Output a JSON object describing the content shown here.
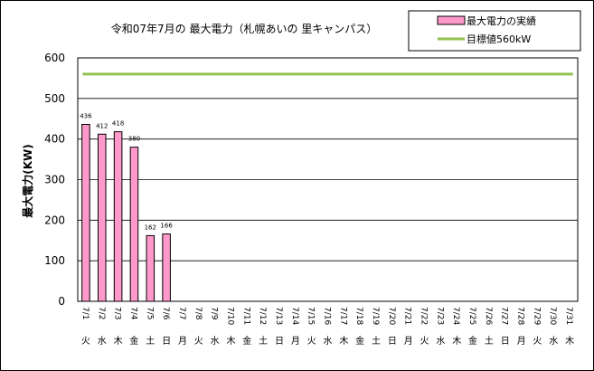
{
  "chart_data": {
    "type": "bar",
    "title": "令和07年7月の 最大電力（札幌あいの 里キャンパス）",
    "ylabel": "最大電力(KW)",
    "xlabel": "",
    "ylim": [
      0,
      600
    ],
    "yticks": [
      0,
      100,
      200,
      300,
      400,
      500,
      600
    ],
    "grid": true,
    "legend_position": "top-right",
    "categories": [
      "7/1",
      "7/2",
      "7/3",
      "7/4",
      "7/5",
      "7/6",
      "7/7",
      "7/8",
      "7/9",
      "7/10",
      "7/11",
      "7/12",
      "7/13",
      "7/14",
      "7/15",
      "7/16",
      "7/17",
      "7/18",
      "7/19",
      "7/20",
      "7/21",
      "7/22",
      "7/23",
      "7/24",
      "7/25",
      "7/26",
      "7/27",
      "7/28",
      "7/29",
      "7/30",
      "7/31"
    ],
    "weekdays": [
      "火",
      "水",
      "木",
      "金",
      "土",
      "日",
      "月",
      "火",
      "水",
      "木",
      "金",
      "土",
      "日",
      "月",
      "火",
      "水",
      "木",
      "金",
      "土",
      "日",
      "月",
      "火",
      "水",
      "木",
      "金",
      "土",
      "日",
      "月",
      "火",
      "水",
      "木"
    ],
    "series": [
      {
        "name": "最大電力の実績",
        "type": "bar",
        "color": "#ff99cc",
        "values": [
          436,
          412,
          418,
          380,
          162,
          166,
          null,
          null,
          null,
          null,
          null,
          null,
          null,
          null,
          null,
          null,
          null,
          null,
          null,
          null,
          null,
          null,
          null,
          null,
          null,
          null,
          null,
          null,
          null,
          null,
          null
        ],
        "data_labels": [
          "436",
          "412",
          "418",
          "380",
          "162",
          "166"
        ]
      },
      {
        "name": "目標値560kW",
        "type": "line",
        "color": "#92c050",
        "value": 560
      }
    ]
  }
}
